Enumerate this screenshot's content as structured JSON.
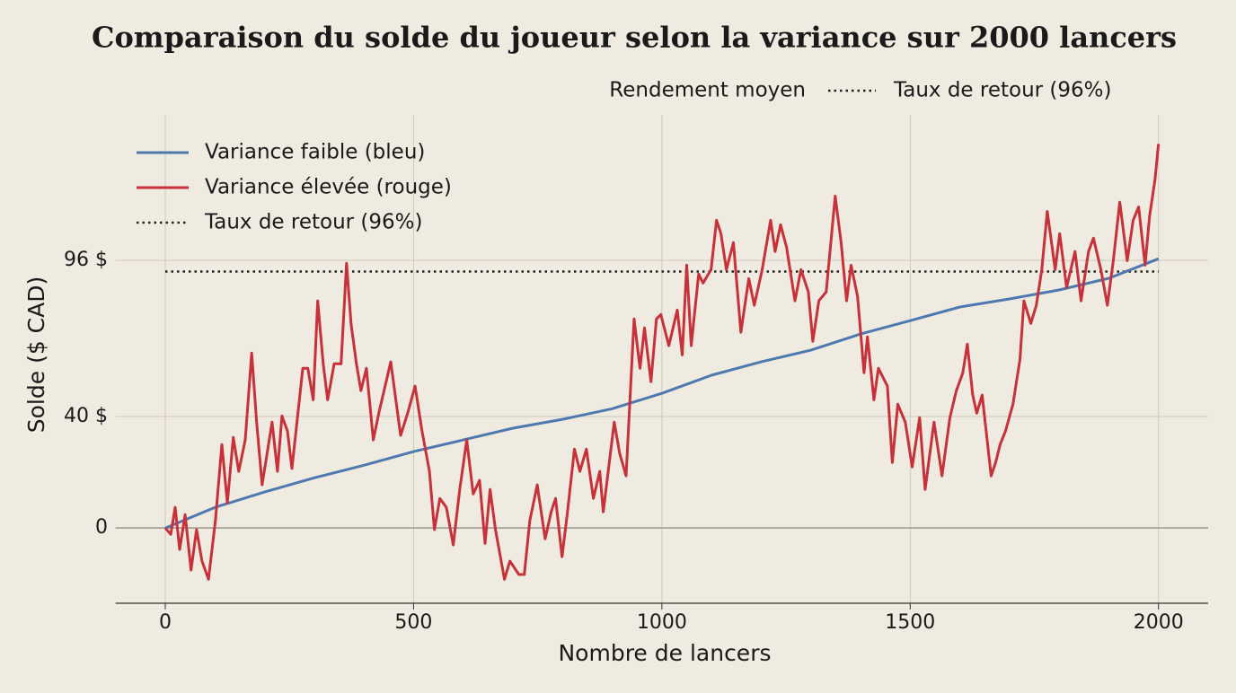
{
  "chart_data": {
    "type": "line",
    "title": "Comparaison du solde du joueur selon la variance sur 2000 lancers",
    "legend_title": "Rendement moyen",
    "xlabel": "Nombre de lancers",
    "ylabel": "Solde ($ CAD)",
    "xlim": [
      -100,
      2100
    ],
    "ylim": [
      -27,
      145
    ],
    "xticks": [
      0,
      500,
      1000,
      1500,
      2000
    ],
    "yticks": [
      0,
      {
        "value": 40,
        "label": "40 $"
      },
      {
        "value": 96,
        "label": "96 $"
      }
    ],
    "grid": true,
    "legend": "upper left",
    "reference_line": {
      "value": 92,
      "label": "Taux de retour (96%)",
      "color": "#222222"
    },
    "series": [
      {
        "name": "Variance faible (bleu)",
        "color": "#4e79b0",
        "x": [
          0,
          100,
          200,
          300,
          400,
          500,
          600,
          700,
          800,
          900,
          1000,
          1100,
          1200,
          1300,
          1400,
          1500,
          1600,
          1700,
          1800,
          1900,
          2000
        ],
        "values": [
          0,
          7.4,
          12.9,
          18,
          22.5,
          27.4,
          31.6,
          35.8,
          39,
          42.8,
          48.3,
          54.8,
          59.6,
          63.8,
          69.6,
          74.4,
          79.3,
          82.2,
          85.4,
          89.6,
          96.6
        ]
      },
      {
        "name": "Variance élevée (rouge)",
        "color": "#c8303a",
        "x": [
          0,
          11,
          20,
          29,
          40,
          52,
          63,
          74,
          87,
          101,
          114,
          125,
          137,
          148,
          161,
          174,
          184,
          195,
          215,
          226,
          235,
          246,
          255,
          277,
          287,
          298,
          307,
          318,
          327,
          340,
          354,
          365,
          374,
          385,
          394,
          405,
          419,
          430,
          454,
          474,
          488,
          503,
          517,
          532,
          542,
          553,
          566,
          580,
          593,
          607,
          620,
          633,
          644,
          654,
          665,
          683,
          694,
          712,
          723,
          734,
          749,
          765,
          777,
          786,
          799,
          810,
          824,
          835,
          848,
          862,
          875,
          882,
          904,
          915,
          928,
          944,
          956,
          965,
          978,
          989,
          998,
          1014,
          1031,
          1041,
          1050,
          1059,
          1074,
          1083,
          1099,
          1110,
          1119,
          1130,
          1144,
          1159,
          1175,
          1186,
          1202,
          1219,
          1228,
          1239,
          1251,
          1268,
          1280,
          1295,
          1304,
          1316,
          1331,
          1349,
          1361,
          1372,
          1381,
          1394,
          1407,
          1414,
          1427,
          1436,
          1454,
          1464,
          1475,
          1490,
          1504,
          1519,
          1530,
          1548,
          1564,
          1580,
          1593,
          1606,
          1615,
          1626,
          1634,
          1645,
          1663,
          1672,
          1681,
          1692,
          1707,
          1721,
          1729,
          1743,
          1754,
          1765,
          1776,
          1792,
          1801,
          1815,
          1832,
          1844,
          1859,
          1869,
          1884,
          1897,
          1909,
          1922,
          1937,
          1949,
          1960,
          1973,
          1982,
          1993,
          2000
        ],
        "values": [
          0,
          -2.3,
          7.4,
          -7.7,
          4.8,
          -15.1,
          -0.6,
          -11.9,
          -18.4,
          2.6,
          29.9,
          9.0,
          32.5,
          20.3,
          31.6,
          62.8,
          38.0,
          15.5,
          38.0,
          20.3,
          40.2,
          34.8,
          21.3,
          57.3,
          57.3,
          46.0,
          81.5,
          58.9,
          46.0,
          58.9,
          58.9,
          95.0,
          73.4,
          58.9,
          49.3,
          57.3,
          31.6,
          41.2,
          59.6,
          33.2,
          41.2,
          50.9,
          34.8,
          20.3,
          -0.6,
          10.6,
          7.4,
          -6.1,
          13.8,
          31.6,
          12.2,
          17.1,
          -5.5,
          13.8,
          -0.6,
          -18.4,
          -11.9,
          -16.7,
          -16.7,
          2.6,
          15.5,
          -3.9,
          5.8,
          10.6,
          -10.3,
          5.8,
          28.3,
          20.3,
          28.3,
          10.6,
          20.3,
          5.8,
          38.0,
          26.7,
          18.7,
          75.0,
          57.3,
          71.8,
          52.5,
          75.0,
          76.6,
          65.4,
          78.2,
          62.1,
          94.3,
          65.4,
          91.1,
          87.9,
          92.7,
          110.4,
          105.6,
          92.7,
          102.4,
          70.2,
          89.5,
          79.9,
          92.7,
          110.4,
          99.2,
          108.8,
          100.8,
          81.5,
          92.7,
          84.7,
          67.0,
          81.5,
          84.7,
          119.1,
          102.4,
          81.5,
          94.3,
          83.1,
          55.7,
          68.6,
          46.0,
          57.3,
          50.9,
          23.5,
          44.4,
          38.0,
          21.9,
          39.6,
          13.8,
          38.0,
          18.7,
          39.6,
          49.3,
          55.7,
          66.0,
          47.7,
          41.2,
          47.7,
          18.7,
          23.5,
          29.9,
          34.8,
          44.4,
          60.5,
          81.5,
          73.4,
          79.9,
          92.7,
          113.6,
          92.7,
          105.6,
          86.3,
          99.2,
          81.5,
          99.2,
          104.0,
          92.7,
          79.9,
          95.9,
          116.9,
          95.9,
          110.4,
          115.2,
          94.3,
          112.0,
          124.9,
          137.8
        ]
      }
    ]
  }
}
